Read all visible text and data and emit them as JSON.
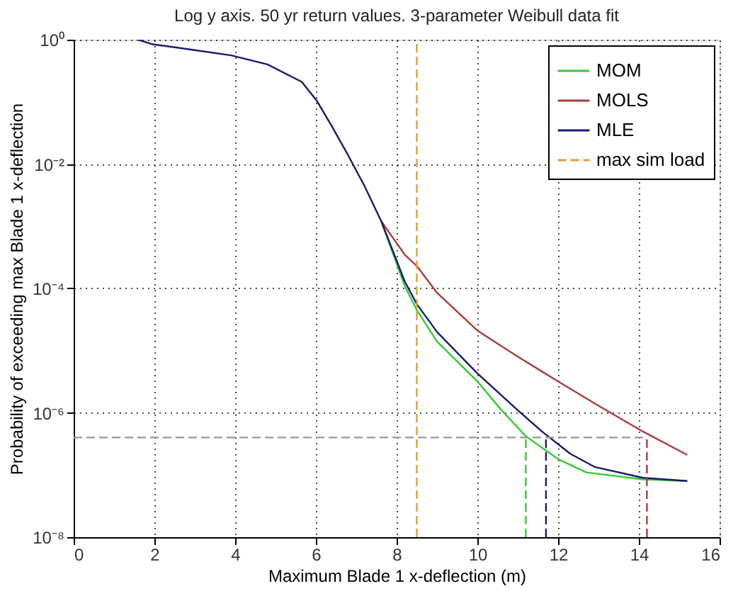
{
  "chart_data": {
    "type": "line",
    "title": "Log y axis. 50 yr return values. 3-parameter Weibull data fit",
    "xlabel": "Maximum Blade 1 x-deflection (m)",
    "ylabel": "Probability of exceeding max Blade 1 x-deflection",
    "xlim": [
      0,
      16
    ],
    "xticks": [
      0,
      2,
      4,
      6,
      8,
      10,
      12,
      14,
      16
    ],
    "ylim": [
      1e-08,
      1
    ],
    "yticks": [
      {
        "value": 1e-08,
        "label": "10⁻⁸"
      },
      {
        "value": 1e-06,
        "label": "10⁻⁶"
      },
      {
        "value": 0.0001,
        "label": "10⁻⁴"
      },
      {
        "value": 0.01,
        "label": "10⁻²"
      },
      {
        "value": 1,
        "label": "10⁰"
      }
    ],
    "log": "y",
    "grid": true,
    "legend": "top right",
    "series": [
      {
        "name": "MOM",
        "color": "#33cc33",
        "line_style": "solid",
        "x": [
          7.62,
          8.2,
          8.5,
          9.0,
          10.0,
          10.6,
          11.2,
          12.0,
          12.7,
          14.1,
          15.2
        ],
        "values": [
          0.0012,
          0.00011,
          4.5e-05,
          1.4e-05,
          3.2e-06,
          1.1e-06,
          4.2e-07,
          1.8e-07,
          1.1e-07,
          8.5e-08,
          8e-08
        ]
      },
      {
        "name": "MOLS",
        "color": "#b03a3a",
        "line_style": "solid",
        "x": [
          7.62,
          8.2,
          8.5,
          9.0,
          10.0,
          11.0,
          12.0,
          13.0,
          14.1,
          15.2
        ],
        "values": [
          0.0012,
          0.00035,
          0.00023,
          8.5e-05,
          2.1e-05,
          8e-06,
          3.2e-06,
          1.3e-06,
          5e-07,
          2.1e-07
        ]
      },
      {
        "name": "MLE",
        "color": "#1a1a6e",
        "line_style": "solid",
        "x": [
          1.6,
          1.93,
          3.0,
          3.9,
          4.8,
          5.65,
          6.02,
          6.4,
          6.77,
          7.2,
          7.62,
          8.2,
          8.5,
          9.0,
          10.0,
          11.0,
          11.6,
          12.3,
          12.9,
          14.1,
          15.2
        ],
        "values": [
          1,
          0.85,
          0.68,
          0.56,
          0.4,
          0.21,
          0.105,
          0.04,
          0.015,
          0.0045,
          0.0012,
          0.00013,
          5.6e-05,
          2e-05,
          4.3e-06,
          1.1e-06,
          5e-07,
          2.2e-07,
          1.35e-07,
          9e-08,
          8e-08
        ]
      },
      {
        "name": "max sim load",
        "color": "#e0a030",
        "line_style": "dashed",
        "x": [
          8.5,
          8.5
        ],
        "values": [
          1e-08,
          1
        ]
      },
      {
        "color": "#999999",
        "line_style": "dashed",
        "x": [
          0,
          14.2
        ],
        "values": [
          4e-07,
          4e-07
        ]
      },
      {
        "color": "#33cc33",
        "line_style": "dashed",
        "x": [
          11.2,
          11.2
        ],
        "values": [
          1e-08,
          4e-07
        ]
      },
      {
        "color": "#1a1a6e",
        "line_style": "dashed",
        "x": [
          11.7,
          11.7
        ],
        "values": [
          1e-08,
          4e-07
        ]
      },
      {
        "color": "#b03a3a",
        "line_style": "dashed",
        "x": [
          14.2,
          14.2
        ],
        "values": [
          1e-08,
          4e-07
        ]
      }
    ]
  }
}
